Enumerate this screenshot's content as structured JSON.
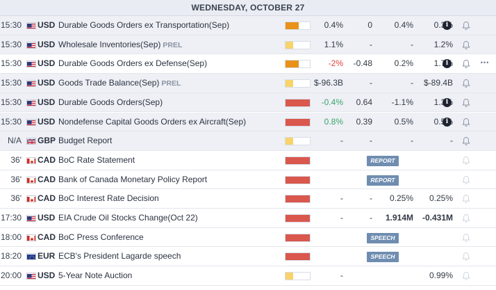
{
  "header": {
    "date": "WEDNESDAY, OCTOBER 27"
  },
  "colors": {
    "impact_orange": "#e8921a",
    "impact_yellow": "#f7d36a",
    "impact_red": "#d9574d",
    "badge_blue": "#6f8db0"
  },
  "icons": {
    "info": "info-icon",
    "bell": "bell-icon",
    "more": "more-options-icon"
  },
  "events": [
    {
      "time": "15:30",
      "flag": "us",
      "currency": "USD",
      "name": "Durable Goods Orders ex Transportation(Sep)",
      "prel": "",
      "impact": "orange",
      "impact_level": 0.55,
      "actual": "0.4%",
      "actual_class": "",
      "deviation": "0",
      "consensus": "0.4%",
      "previous": "0.3%",
      "info": true,
      "bell_faded": false,
      "more": false,
      "badge": "",
      "row": "grey"
    },
    {
      "time": "15:30",
      "flag": "us",
      "currency": "USD",
      "name": "Wholesale Inventories(Sep)",
      "prel": "PREL",
      "impact": "yellow",
      "impact_level": 0.3,
      "actual": "1.1%",
      "actual_class": "",
      "deviation": "-",
      "consensus": "-",
      "previous": "1.2%",
      "info": false,
      "bell_faded": false,
      "more": false,
      "badge": "",
      "row": "grey"
    },
    {
      "time": "15:30",
      "flag": "us",
      "currency": "USD",
      "name": "Durable Goods Orders ex Defense(Sep)",
      "prel": "",
      "impact": "orange",
      "impact_level": 0.55,
      "actual": "-2%",
      "actual_class": "neg",
      "deviation": "-0.48",
      "consensus": "0.2%",
      "previous": "1.7%",
      "info": true,
      "bell_faded": false,
      "more": true,
      "badge": "",
      "row": "white"
    },
    {
      "time": "15:30",
      "flag": "us",
      "currency": "USD",
      "name": "Goods Trade Balance(Sep)",
      "prel": "PREL",
      "impact": "yellow",
      "impact_level": 0.3,
      "actual": "$-96.3B",
      "actual_class": "",
      "deviation": "-",
      "consensus": "-",
      "previous": "$-89.4B",
      "info": false,
      "bell_faded": false,
      "more": false,
      "badge": "",
      "row": "grey"
    },
    {
      "time": "15:30",
      "flag": "us",
      "currency": "USD",
      "name": "Durable Goods Orders(Sep)",
      "prel": "",
      "impact": "red",
      "impact_level": 1,
      "actual": "-0.4%",
      "actual_class": "pos",
      "deviation": "0.64",
      "consensus": "-1.1%",
      "previous": "1.3%",
      "info": true,
      "bell_faded": false,
      "more": false,
      "badge": "",
      "row": "grey"
    },
    {
      "time": "15:30",
      "flag": "us",
      "currency": "USD",
      "name": "Nondefense Capital Goods Orders ex Aircraft(Sep)",
      "prel": "",
      "impact": "red",
      "impact_level": 1,
      "actual": "0.8%",
      "actual_class": "pos",
      "deviation": "0.39",
      "consensus": "0.5%",
      "previous": "0.5%",
      "info": true,
      "bell_faded": false,
      "more": false,
      "badge": "",
      "row": "grey"
    },
    {
      "time": "N/A",
      "flag": "gb",
      "currency": "GBP",
      "name": "Budget Report",
      "prel": "",
      "impact": "yellow",
      "impact_level": 0.3,
      "actual": "-",
      "actual_class": "",
      "deviation": "-",
      "consensus": "-",
      "previous": "-",
      "info": false,
      "bell_faded": false,
      "more": false,
      "badge": "",
      "row": "grey"
    },
    {
      "time": "36'",
      "flag": "ca",
      "currency": "CAD",
      "name": "BoC Rate Statement",
      "prel": "",
      "impact": "red",
      "impact_level": 1,
      "actual": "",
      "actual_class": "",
      "deviation": "",
      "consensus": "",
      "previous": "",
      "info": false,
      "bell_faded": true,
      "more": false,
      "badge": "REPORT",
      "row": "white"
    },
    {
      "time": "36'",
      "flag": "ca",
      "currency": "CAD",
      "name": "Bank of Canada Monetary Policy Report",
      "prel": "",
      "impact": "red",
      "impact_level": 1,
      "actual": "",
      "actual_class": "",
      "deviation": "",
      "consensus": "",
      "previous": "",
      "info": false,
      "bell_faded": true,
      "more": false,
      "badge": "REPORT",
      "row": "white"
    },
    {
      "time": "36'",
      "flag": "ca",
      "currency": "CAD",
      "name": "BoC Interest Rate Decision",
      "prel": "",
      "impact": "red",
      "impact_level": 1,
      "actual": "-",
      "actual_class": "",
      "deviation": "-",
      "consensus": "0.25%",
      "previous": "0.25%",
      "info": false,
      "bell_faded": true,
      "more": false,
      "badge": "",
      "row": "white"
    },
    {
      "time": "17:30",
      "flag": "us",
      "currency": "USD",
      "name": "EIA Crude Oil Stocks Change(Oct 22)",
      "prel": "",
      "impact": "red",
      "impact_level": 1,
      "actual": "-",
      "actual_class": "",
      "deviation": "-",
      "consensus": "1.914M",
      "previous": "-0.431M",
      "info": false,
      "bell_faded": true,
      "more": false,
      "badge": "",
      "row": "white",
      "bold_vals": true
    },
    {
      "time": "18:00",
      "flag": "ca",
      "currency": "CAD",
      "name": "BoC Press Conference",
      "prel": "",
      "impact": "red",
      "impact_level": 1,
      "actual": "",
      "actual_class": "",
      "deviation": "",
      "consensus": "",
      "previous": "",
      "info": false,
      "bell_faded": true,
      "more": false,
      "badge": "SPEECH",
      "row": "white"
    },
    {
      "time": "18:20",
      "flag": "eu",
      "currency": "EUR",
      "name": "ECB's President Lagarde speech",
      "prel": "",
      "impact": "red",
      "impact_level": 1,
      "actual": "",
      "actual_class": "",
      "deviation": "",
      "consensus": "",
      "previous": "",
      "info": false,
      "bell_faded": true,
      "more": false,
      "badge": "SPEECH",
      "row": "white"
    },
    {
      "time": "20:00",
      "flag": "us",
      "currency": "USD",
      "name": "5-Year Note Auction",
      "prel": "",
      "impact": "yellow",
      "impact_level": 0.3,
      "actual": "-",
      "actual_class": "",
      "deviation": "",
      "consensus": "",
      "previous": "0.99%",
      "info": false,
      "bell_faded": true,
      "more": false,
      "badge": "",
      "row": "white"
    }
  ]
}
